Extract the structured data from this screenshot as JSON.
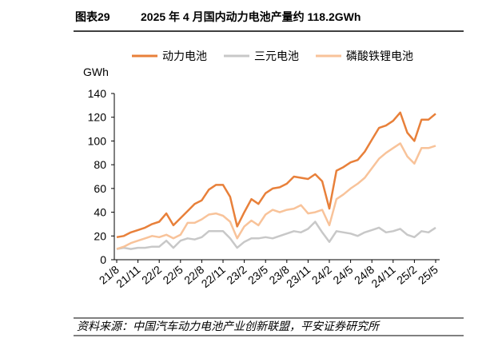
{
  "header": {
    "label": "图表29"
  },
  "chart_data": {
    "type": "line",
    "title": "2025 年 4 月国内动力电池产量约 118.2GWh",
    "ylabel": "GWh",
    "source": "资料来源：中国汽车动力电池产业创新联盟，平安证券研究所",
    "categories": [
      "21/8",
      null,
      null,
      "21/11",
      null,
      null,
      "22/2",
      null,
      null,
      "22/5",
      null,
      null,
      "22/8",
      null,
      null,
      "22/11",
      null,
      null,
      "23/2",
      null,
      null,
      "23/5",
      null,
      null,
      "23/8",
      null,
      null,
      "23/11",
      null,
      null,
      "24/2",
      null,
      null,
      "24/5",
      null,
      null,
      "24/8",
      null,
      null,
      "24/11",
      null,
      null,
      "25/2",
      null,
      null,
      "25/5"
    ],
    "ylim": [
      0,
      140
    ],
    "yticks": [
      0,
      20,
      40,
      60,
      80,
      100,
      120,
      140
    ],
    "grid": false,
    "legend": "top",
    "series": [
      {
        "name": "动力电池",
        "color": "#e8803a",
        "values": [
          19,
          20,
          23,
          25,
          27,
          30,
          32,
          39,
          29,
          35,
          41,
          47,
          50,
          59,
          63,
          63,
          53,
          28,
          40,
          51,
          47,
          56,
          60,
          61,
          64,
          70,
          69,
          68,
          72,
          66,
          43,
          75,
          78,
          82,
          84,
          91,
          101,
          111,
          113,
          117,
          124,
          107,
          100,
          118,
          118,
          123
        ]
      },
      {
        "name": "三元电池",
        "color": "#c8c8c8",
        "values": [
          9,
          10,
          9,
          10,
          10,
          11,
          11,
          16,
          10,
          16,
          18,
          17,
          19,
          24,
          24,
          24,
          18,
          10,
          15,
          18,
          18,
          19,
          18,
          20,
          22,
          24,
          23,
          26,
          32,
          23,
          15,
          24,
          23,
          22,
          20,
          23,
          25,
          27,
          23,
          24,
          26,
          21,
          19,
          24,
          23,
          27
        ]
      },
      {
        "name": "磷酸铁锂电池",
        "color": "#f8c39a",
        "values": [
          9,
          11,
          14,
          16,
          18,
          20,
          19,
          21,
          18,
          21,
          31,
          31,
          34,
          38,
          39,
          37,
          32,
          18,
          28,
          33,
          29,
          38,
          42,
          40,
          42,
          43,
          46,
          39,
          40,
          42,
          29,
          51,
          55,
          60,
          64,
          69,
          77,
          85,
          90,
          94,
          98,
          87,
          81,
          94,
          94,
          96
        ]
      }
    ]
  }
}
